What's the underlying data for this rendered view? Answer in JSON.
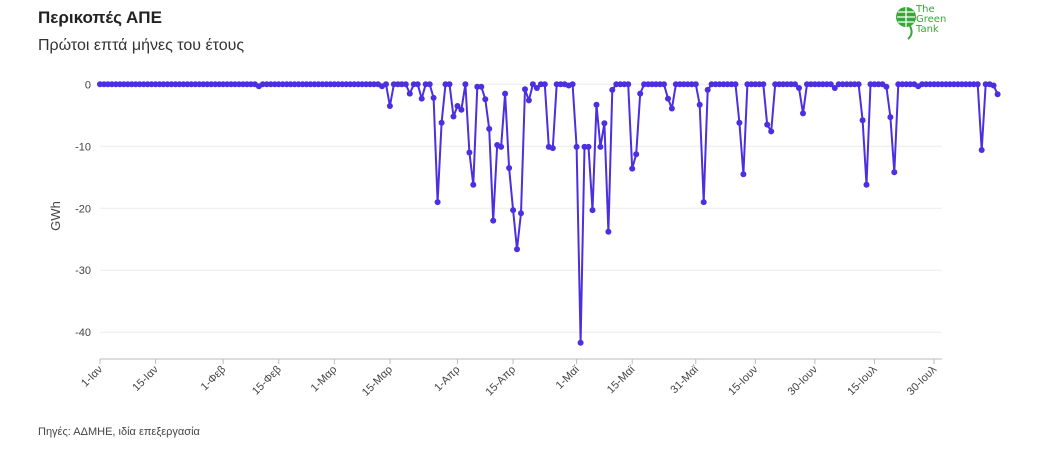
{
  "title": "Περικοπές ΑΠΕ",
  "subtitle": "Πρώτοι επτά μήνες του έτους",
  "source": "Πηγές: ΑΔΜΗΕ, ιδία επεξεργασία",
  "logo": {
    "line1": "The",
    "line2": "Green",
    "line3": "Tank",
    "color": "#3aa637"
  },
  "colors": {
    "series": "#4b2fe0",
    "grid": "#ececec",
    "axis": "#bbbbbb"
  },
  "chart_data": {
    "type": "line",
    "ylabel": "GWh",
    "ylim": [
      -44,
      1.5
    ],
    "yticks": [
      0,
      -10,
      -20,
      -30,
      -40
    ],
    "xlim": [
      1,
      213
    ],
    "xticks": [
      {
        "label": "1-Ιαν",
        "day": 1
      },
      {
        "label": "15-Ιαν",
        "day": 15
      },
      {
        "label": "1-Φεβ",
        "day": 32
      },
      {
        "label": "15-Φεβ",
        "day": 46
      },
      {
        "label": "1-Μαρ",
        "day": 60
      },
      {
        "label": "15-Μαρ",
        "day": 74
      },
      {
        "label": "1-Απρ",
        "day": 91
      },
      {
        "label": "15-Απρ",
        "day": 105
      },
      {
        "label": "1-Μαϊ",
        "day": 121
      },
      {
        "label": "15-Μαϊ",
        "day": 135
      },
      {
        "label": "31-Μαϊ",
        "day": 151
      },
      {
        "label": "15-Ιουν",
        "day": 166
      },
      {
        "label": "30-Ιουν",
        "day": 181
      },
      {
        "label": "15-Ιουλ",
        "day": 196
      },
      {
        "label": "30-Ιουλ",
        "day": 211
      }
    ],
    "x_start": 1,
    "y": [
      0,
      0,
      0,
      0,
      0,
      0,
      0,
      0,
      0,
      0,
      0,
      0,
      0,
      0,
      0,
      0,
      0,
      0,
      0,
      0,
      0,
      0,
      0,
      0,
      0,
      0,
      0,
      0,
      0,
      0,
      0,
      0,
      0,
      0,
      0,
      0,
      0,
      0,
      0,
      0,
      -0.3,
      0,
      0,
      0,
      0,
      0,
      0,
      0,
      0,
      0,
      0,
      0,
      0,
      0,
      0,
      0,
      0,
      0,
      0,
      0,
      0,
      0,
      0,
      0,
      0,
      0,
      0,
      0,
      0,
      0,
      0,
      -0.3,
      0,
      -3.5,
      0,
      0,
      0,
      0,
      -1.5,
      0,
      0,
      -2.3,
      0,
      0,
      -2.2,
      -19,
      -6.2,
      0,
      0,
      -5.2,
      -3.5,
      -4.1,
      0,
      -11,
      -16.2,
      -0.4,
      -0.4,
      -2.4,
      -7.2,
      -22,
      -9.8,
      -10.1,
      -1.5,
      -13.5,
      -20.3,
      -26.6,
      -20.8,
      -0.8,
      -2.6,
      0,
      -0.6,
      0,
      0,
      -10.1,
      -10.3,
      0,
      0,
      0,
      -0.2,
      0,
      -10.1,
      -41.7,
      -10.1,
      -10.1,
      -20.3,
      -3.3,
      -10.1,
      -6.3,
      -23.8,
      -0.9,
      0,
      0,
      0,
      0,
      -13.6,
      -11.3,
      -1.5,
      0,
      0,
      0,
      0,
      0,
      0,
      -2.3,
      -3.9,
      0,
      0,
      0,
      0,
      0,
      0,
      -3.3,
      -19,
      -0.9,
      0,
      0,
      0,
      0,
      0,
      0,
      0,
      -6.2,
      -14.5,
      0,
      0,
      0,
      0,
      0,
      -6.5,
      -7.6,
      0,
      0,
      0,
      0,
      0,
      0,
      -0.6,
      -4.7,
      0,
      0,
      0,
      0,
      0,
      0,
      0,
      -0.6,
      0,
      0,
      0,
      0,
      0,
      0,
      -5.8,
      -16.2,
      0,
      0,
      0,
      0,
      -0.4,
      -5.3,
      -14.2,
      0,
      0,
      0,
      0,
      0,
      -0.3,
      0,
      0,
      0,
      0,
      0,
      0,
      0,
      0,
      0,
      0,
      0,
      0,
      0,
      0,
      0,
      -10.6,
      0,
      0,
      -0.2,
      -1.6
    ]
  }
}
